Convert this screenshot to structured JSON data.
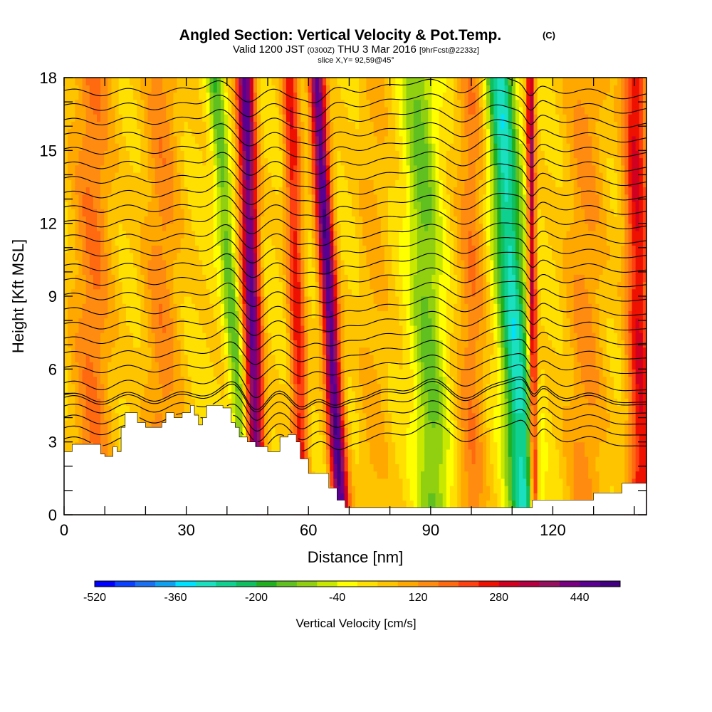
{
  "chart_data": {
    "type": "heatmap",
    "title": "Angled Section: Vertical Velocity & Pot.Temp.",
    "title_suffix": "(C)",
    "subtitle": {
      "valid_prefix": "Valid 1200 JST",
      "utc": "(0300Z)",
      "date": "THU 3 Mar 2016",
      "forecast": "[9hrFcst@2233z]"
    },
    "slice": "slice X,Y= 92,59@45°",
    "xlabel": "Distance [nm]",
    "ylabel": "Height [Kft MSL]",
    "xlim": [
      0,
      143
    ],
    "ylim": [
      0,
      18
    ],
    "x_ticks": [
      "0",
      "30",
      "60",
      "90",
      "120"
    ],
    "x_tick_values": [
      0,
      30,
      60,
      90,
      120
    ],
    "y_ticks": [
      "0",
      "3",
      "6",
      "9",
      "12",
      "15",
      "18"
    ],
    "y_tick_values": [
      0,
      3,
      6,
      9,
      12,
      15,
      18
    ],
    "contour_variable": "Pot.Temp. (C)",
    "contour_upper_from_height": 5,
    "contour_levels_low": [
      5,
      6,
      7,
      8,
      9
    ],
    "contour_upper_levels": 22,
    "contour_spacing_kft": 0.6,
    "colorbar": {
      "title": "Vertical Velocity [cm/s]",
      "min": -520,
      "max": 520,
      "step": 40,
      "tick_labels": [
        "-520",
        "-360",
        "-200",
        "-40",
        "120",
        "280",
        "440"
      ],
      "tick_values": [
        -520,
        -360,
        -200,
        -40,
        120,
        280,
        440
      ],
      "colors": [
        "#0000ff",
        "#0a40ff",
        "#1a70f0",
        "#10a0f0",
        "#00e0ff",
        "#1ae0c0",
        "#10d090",
        "#10c060",
        "#20b020",
        "#60c020",
        "#90d010",
        "#c8e800",
        "#ffff00",
        "#ffe000",
        "#ffc400",
        "#ffa800",
        "#ff8c10",
        "#ff6a10",
        "#ff4010",
        "#ee1000",
        "#d20020",
        "#b40040",
        "#961060",
        "#780080",
        "#5a0090",
        "#400080"
      ]
    },
    "terrain_profile": {
      "x": [
        0,
        2,
        3,
        5,
        7,
        9,
        10,
        12,
        13,
        14,
        15,
        17,
        18,
        20,
        22,
        24,
        25,
        27,
        29,
        31,
        32,
        33,
        34,
        35,
        37,
        38,
        39,
        41,
        42,
        43,
        45,
        47,
        48,
        50,
        51,
        53,
        55,
        57,
        58,
        60,
        61,
        63,
        65,
        67,
        69,
        72,
        75,
        80,
        90,
        100,
        105,
        110,
        113,
        115,
        118,
        120,
        122,
        125,
        128,
        130,
        133,
        135,
        137,
        140,
        143
      ],
      "y": [
        2.6,
        2.9,
        2.9,
        2.9,
        2.9,
        2.5,
        2.4,
        2.8,
        2.6,
        3.6,
        4.2,
        4.2,
        3.8,
        3.6,
        3.6,
        3.8,
        4.2,
        4.0,
        4.2,
        4.5,
        4.1,
        3.7,
        4.0,
        4.5,
        4.5,
        4.5,
        4.4,
        3.8,
        3.6,
        3.2,
        3.0,
        2.8,
        2.8,
        2.6,
        2.6,
        3.2,
        3.3,
        3.0,
        2.3,
        1.7,
        1.7,
        1.7,
        1.1,
        0.6,
        0.3,
        0.3,
        0.3,
        0.3,
        0.3,
        0.3,
        0.3,
        0.3,
        0.3,
        0.6,
        0.6,
        0.6,
        0.6,
        0.6,
        0.6,
        0.9,
        0.9,
        0.9,
        1.3,
        1.3,
        1.3
      ]
    },
    "velocity_features": [
      {
        "x": 46,
        "center_shift": 1.5,
        "width": 2.2,
        "amplitude": 420
      },
      {
        "x": 65,
        "center_shift": 3.0,
        "width": 2.0,
        "amplitude": 440
      },
      {
        "x": 57,
        "center_shift": 1.5,
        "width": 2.0,
        "amplitude": 230
      },
      {
        "x": 110,
        "center_shift": 3.0,
        "width": 3.5,
        "amplitude": -330
      },
      {
        "x": 89,
        "center_shift": 2.0,
        "width": 4.0,
        "amplitude": -160
      },
      {
        "x": 41,
        "center_shift": 4.0,
        "width": 2.0,
        "amplitude": -170
      },
      {
        "x": 141,
        "center_shift": 1.0,
        "width": 3.0,
        "amplitude": 250
      },
      {
        "x": 115,
        "center_shift": 0.5,
        "width": 1.0,
        "amplitude": 330
      },
      {
        "x": 7,
        "center_shift": 0.0,
        "width": 5.0,
        "amplitude": 130
      },
      {
        "x": 24,
        "center_shift": 0.0,
        "width": 4.5,
        "amplitude": 110
      },
      {
        "x": 100,
        "center_shift": 0.0,
        "width": 3.5,
        "amplitude": 120
      },
      {
        "x": 128,
        "center_shift": 0.0,
        "width": 5.0,
        "amplitude": 100
      },
      {
        "x": 76,
        "center_shift": 0.0,
        "width": 4.0,
        "amplitude": 60
      }
    ]
  }
}
